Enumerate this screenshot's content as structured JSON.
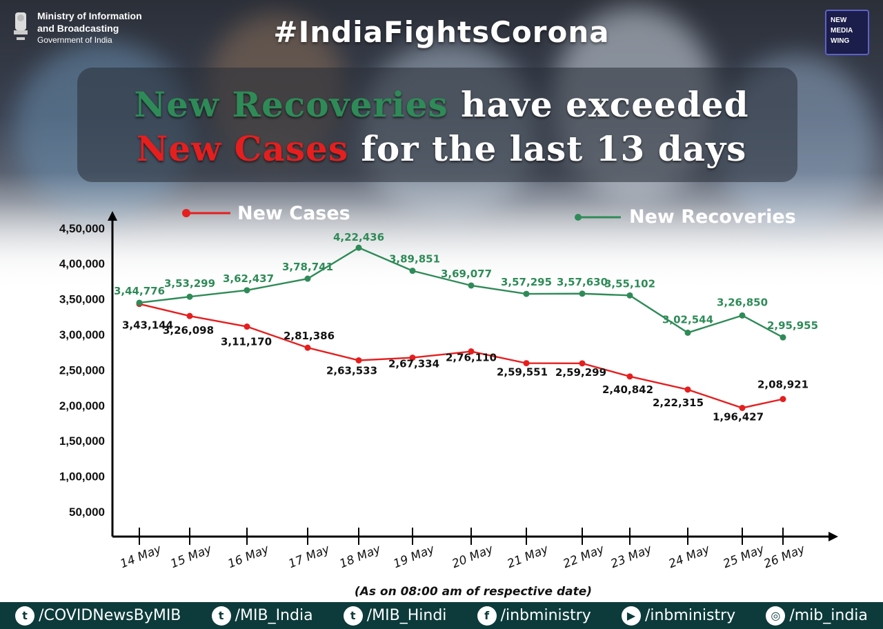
{
  "header": {
    "ministry_line1": "Ministry of Information",
    "ministry_line2": "and Broadcasting",
    "ministry_line3": "Government of India",
    "hashtag": "#IndiaFightsCorona",
    "logo_lines": [
      "NEW",
      "MEDIA",
      "WING"
    ]
  },
  "headline": {
    "part1_green": "New Recoveries",
    "part1_rest": " have exceeded",
    "part2_red": "New Cases",
    "part2_rest": " for the last 13 days"
  },
  "chart_data": {
    "type": "line",
    "categories": [
      "14 May",
      "15 May",
      "16 May",
      "17 May",
      "18 May",
      "19 May",
      "20 May",
      "21 May",
      "22 May",
      "23 May",
      "24 May",
      "25 May",
      "26 May"
    ],
    "series": [
      {
        "name": "New Cases",
        "color": "#e61e1e",
        "values": [
          343144,
          326098,
          311170,
          281386,
          263533,
          267334,
          276110,
          259551,
          259299,
          240842,
          222315,
          196427,
          208921
        ],
        "labels": [
          "3,43,144",
          "3,26,098",
          "3,11,170",
          "2,81,386",
          "2,63,533",
          "2,67,334",
          "2,76,110",
          "2,59,551",
          "2,59,299",
          "2,40,842",
          "2,22,315",
          "1,96,427",
          "2,08,921"
        ]
      },
      {
        "name": "New Recoveries",
        "color": "#2e8b57",
        "values": [
          344776,
          353299,
          362437,
          378741,
          422436,
          389851,
          369077,
          357295,
          357630,
          355102,
          302544,
          326850,
          295955
        ],
        "labels": [
          "3,44,776",
          "3,53,299",
          "3,62,437",
          "3,78,741",
          "4,22,436",
          "3,89,851",
          "3,69,077",
          "3,57,295",
          "3,57,630",
          "3,55,102",
          "3,02,544",
          "3,26,850",
          "2,95,955"
        ]
      }
    ],
    "y_ticks": [
      "50,000",
      "1,00,000",
      "1,50,000",
      "2,00,000",
      "2,50,000",
      "3,00,000",
      "3,50,000",
      "4,00,000",
      "4,50,000"
    ],
    "y_tick_values": [
      50000,
      100000,
      150000,
      200000,
      250000,
      300000,
      350000,
      400000,
      450000
    ],
    "ylim": [
      0,
      450000
    ],
    "note": "(As on 08:00 am of respective date)",
    "legend_placement": "top"
  },
  "footer": {
    "items": [
      {
        "icon": "twitter-icon",
        "label": "/COVIDNewsByMIB"
      },
      {
        "icon": "twitter-icon",
        "label": "/MIB_India"
      },
      {
        "icon": "twitter-icon",
        "label": "/MIB_Hindi"
      },
      {
        "icon": "facebook-icon",
        "label": "/inbministry"
      },
      {
        "icon": "youtube-icon",
        "label": "/inbministry"
      },
      {
        "icon": "instagram-icon",
        "label": "/mib_india"
      }
    ]
  },
  "colors": {
    "cases": "#e61e1e",
    "recoveries": "#2e8b57",
    "footer": "#0d3b3b"
  }
}
